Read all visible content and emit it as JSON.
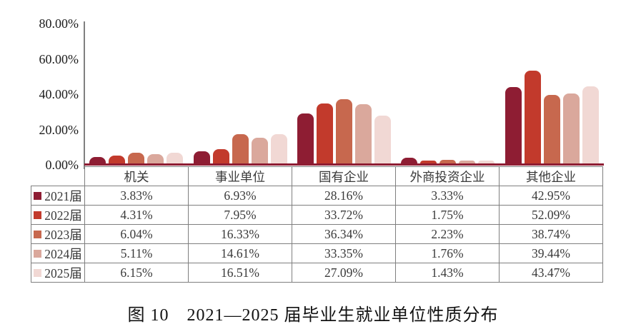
{
  "title": "图 10　2021—2025 届毕业生就业单位性质分布",
  "colors": {
    "axis_line": "#808080",
    "baseline": "#8E1D33",
    "table_border": "#7f7f7f",
    "text": "#3a3a3a"
  },
  "chart_data": {
    "type": "bar",
    "title": "2021—2025 届毕业生就业单位性质分布",
    "categories": [
      "机关",
      "事业单位",
      "国有企业",
      "外商投资企业",
      "其他企业"
    ],
    "series": [
      {
        "name": "2021届",
        "color": "#8E1D33",
        "values": [
          3.83,
          6.93,
          28.16,
          3.33,
          42.95
        ]
      },
      {
        "name": "2022届",
        "color": "#C23A2C",
        "values": [
          4.31,
          7.95,
          33.72,
          1.75,
          52.09
        ]
      },
      {
        "name": "2023届",
        "color": "#C7684E",
        "values": [
          6.04,
          16.33,
          36.34,
          2.23,
          38.74
        ]
      },
      {
        "name": "2024届",
        "color": "#DAA89C",
        "values": [
          5.11,
          14.61,
          33.35,
          1.76,
          39.44
        ]
      },
      {
        "name": "2025届",
        "color": "#F1D8D4",
        "values": [
          6.15,
          16.51,
          27.09,
          1.43,
          43.47
        ]
      }
    ],
    "ylim": [
      0,
      80
    ],
    "y_tick_labels": [
      "80.00%",
      "60.00%",
      "40.00%",
      "20.00%",
      "0.00%"
    ],
    "value_suffix": "%",
    "grid": false,
    "legend_position": "table-left-column",
    "xlabel": "",
    "ylabel": ""
  }
}
